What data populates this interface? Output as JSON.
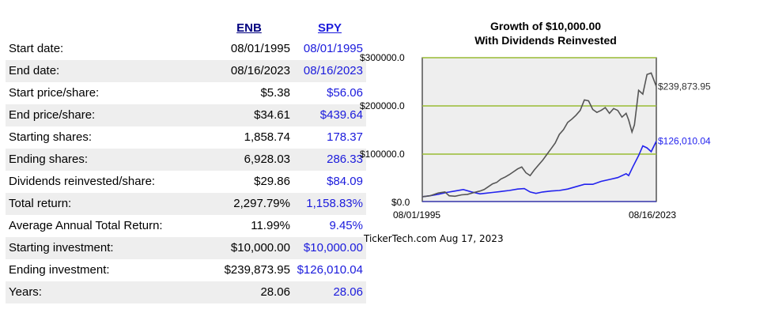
{
  "table": {
    "headers": [
      "ENB",
      "SPY"
    ],
    "rows": [
      {
        "label": "Start date:",
        "enb": "08/01/1995",
        "spy": "08/01/1995"
      },
      {
        "label": "End date:",
        "enb": "08/16/2023",
        "spy": "08/16/2023"
      },
      {
        "label": "Start price/share:",
        "enb": "$5.38",
        "spy": "$56.06"
      },
      {
        "label": "End price/share:",
        "enb": "$34.61",
        "spy": "$439.64"
      },
      {
        "label": "Starting shares:",
        "enb": "1,858.74",
        "spy": "178.37"
      },
      {
        "label": "Ending shares:",
        "enb": "6,928.03",
        "spy": "286.33"
      },
      {
        "label": "Dividends reinvested/share:",
        "enb": "$29.86",
        "spy": "$84.09"
      },
      {
        "label": "Total return:",
        "enb": "2,297.79%",
        "spy": "1,158.83%"
      },
      {
        "label": "Average Annual Total Return:",
        "enb": "11.99%",
        "spy": "9.45%"
      },
      {
        "label": "Starting investment:",
        "enb": "$10,000.00",
        "spy": "$10,000.00"
      },
      {
        "label": "Ending investment:",
        "enb": "$239,873.95",
        "spy": "$126,010.04"
      },
      {
        "label": "Years:",
        "enb": "28.06",
        "spy": "28.06"
      }
    ]
  },
  "chart_data": {
    "type": "line",
    "title": "Growth of $10,000.00",
    "subtitle": "With Dividends Reinvested",
    "y_ticks": [
      "$300000.0",
      "$200000.0",
      "$100000.0",
      "$0.0"
    ],
    "x_labels": [
      "08/01/1995",
      "08/16/2023"
    ],
    "ylim": [
      0,
      300000
    ],
    "xlim": [
      1995.58,
      2023.62
    ],
    "grid": true,
    "series": [
      {
        "key": "ENB",
        "color": "#555555",
        "end_label": "$239,873.95",
        "x": [
          1995.58,
          1996.5,
          1997.5,
          1998.3,
          1998.8,
          1999.5,
          2000.3,
          2001.0,
          2001.8,
          2002.5,
          2003.0,
          2003.5,
          2004.0,
          2004.5,
          2005.0,
          2005.5,
          2006.0,
          2006.5,
          2007.0,
          2007.5,
          2008.0,
          2008.5,
          2009.0,
          2009.5,
          2010.0,
          2010.5,
          2011.0,
          2011.5,
          2012.0,
          2012.5,
          2013.0,
          2013.5,
          2014.0,
          2014.5,
          2015.0,
          2015.5,
          2016.0,
          2016.5,
          2017.0,
          2017.5,
          2018.0,
          2018.5,
          2019.0,
          2019.5,
          2020.0,
          2020.3,
          2020.7,
          2021.0,
          2021.5,
          2022.0,
          2022.5,
          2023.0,
          2023.62
        ],
        "y": [
          10000,
          12000,
          18000,
          20000,
          12000,
          11000,
          14000,
          15000,
          19000,
          22000,
          25000,
          31000,
          37000,
          40000,
          47000,
          51000,
          56000,
          62000,
          68000,
          72000,
          60000,
          54000,
          66000,
          76000,
          86000,
          98000,
          110000,
          122000,
          140000,
          150000,
          165000,
          172000,
          180000,
          190000,
          212000,
          210000,
          192000,
          186000,
          190000,
          196000,
          184000,
          194000,
          190000,
          176000,
          184000,
          170000,
          145000,
          160000,
          232000,
          224000,
          265000,
          268000,
          239874
        ]
      },
      {
        "key": "SPY",
        "color": "#2222ee",
        "end_label": "$126,010.04",
        "x": [
          1995.58,
          1996.5,
          1997.5,
          1998.5,
          1999.5,
          2000.5,
          2001.5,
          2002.5,
          2003.0,
          2004.0,
          2005.0,
          2006.0,
          2007.0,
          2007.8,
          2008.5,
          2009.2,
          2010.0,
          2011.0,
          2012.0,
          2013.0,
          2014.0,
          2015.0,
          2016.0,
          2017.0,
          2018.0,
          2019.0,
          2020.0,
          2020.3,
          2020.8,
          2021.5,
          2022.0,
          2022.5,
          2023.0,
          2023.62
        ],
        "y": [
          10000,
          12000,
          15000,
          19000,
          22000,
          25000,
          20000,
          16000,
          17000,
          19000,
          21000,
          23000,
          26000,
          27000,
          20000,
          17000,
          20000,
          22000,
          23000,
          26000,
          31000,
          36000,
          36000,
          42000,
          46000,
          50000,
          58000,
          54000,
          72000,
          96000,
          116000,
          112000,
          104000,
          126010
        ]
      }
    ]
  },
  "footer": {
    "source": "TickerTech.com",
    "date": "Aug 17, 2023"
  }
}
